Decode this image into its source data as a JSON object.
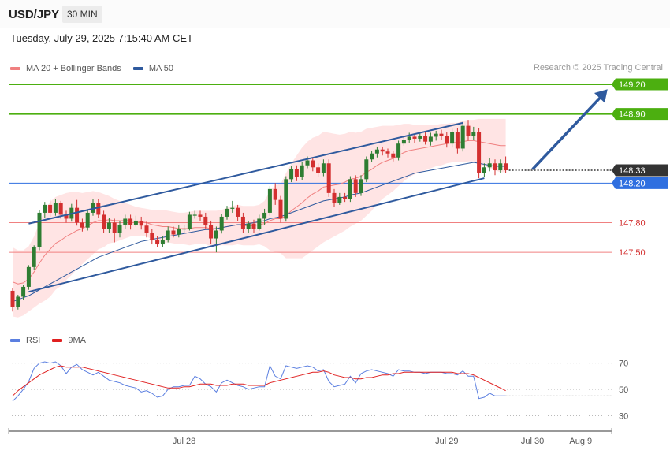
{
  "header": {
    "symbol": "USD/JPY",
    "timeframe": "30 MIN"
  },
  "datetime": "Tuesday, July 29, 2025 7:15:40 AM CET",
  "credit": "Research © 2025 Trading Central",
  "colors": {
    "up": "#2e7d32",
    "down": "#d32f2f",
    "ma20": "#f08080",
    "bands": "#ffd6d6",
    "ma50": "#2f5a9e",
    "resistance": "#4caf10",
    "pivot": "#2f6fe0",
    "support": "#f08080",
    "current": "#333333",
    "rsi": "#5b7fe0",
    "rsi_ma": "#e02020"
  },
  "legend": [
    {
      "name": "MA 20 + Bollinger Bands",
      "color": "#f08080"
    },
    {
      "name": "MA 50",
      "color": "#2f5a9e"
    }
  ],
  "rsi_legend": [
    {
      "name": "RSI",
      "color": "#5b7fe0"
    },
    {
      "name": "9MA",
      "color": "#e02020"
    }
  ],
  "chart_data": {
    "type": "candlestick",
    "x_labels": [
      {
        "label": "Jul 28",
        "bar": 32
      },
      {
        "label": "Jul 29",
        "bar": 81
      },
      {
        "label": "Jul 30",
        "bar": 97
      },
      {
        "label": "Aug 9",
        "bar": 106
      }
    ],
    "y_range": [
      146.85,
      149.35
    ],
    "levels": [
      {
        "label": "149.20",
        "value": 149.2,
        "kind": "resistance"
      },
      {
        "label": "148.90",
        "value": 148.9,
        "kind": "resistance"
      },
      {
        "label": "148.33",
        "value": 148.33,
        "kind": "current"
      },
      {
        "label": "148.20",
        "value": 148.2,
        "kind": "pivot"
      },
      {
        "label": "147.80",
        "value": 147.8,
        "kind": "support"
      },
      {
        "label": "147.50",
        "value": 147.5,
        "kind": "support"
      }
    ],
    "trendlines": [
      {
        "from": [
          3,
          147.79
        ],
        "to": [
          84,
          148.81
        ]
      },
      {
        "from": [
          3,
          147.1
        ],
        "to": [
          88,
          148.25
        ]
      }
    ],
    "arrow": {
      "from": [
        97,
        148.34
      ],
      "to": [
        111,
        149.15
      ]
    },
    "candles": [
      [
        147.11,
        146.95,
        147.14,
        146.9
      ],
      [
        146.95,
        147.05,
        147.07,
        146.92
      ],
      [
        147.05,
        147.15,
        147.17,
        147.02
      ],
      [
        147.15,
        147.35,
        147.37,
        147.12
      ],
      [
        147.35,
        147.55,
        147.57,
        147.32
      ],
      [
        147.55,
        147.9,
        147.93,
        147.52
      ],
      [
        147.9,
        147.98,
        148.01,
        147.85
      ],
      [
        147.98,
        147.9,
        148.03,
        147.86
      ],
      [
        147.9,
        148.0,
        148.04,
        147.87
      ],
      [
        148.0,
        147.88,
        148.02,
        147.84
      ],
      [
        147.88,
        147.84,
        147.92,
        147.8
      ],
      [
        147.84,
        147.95,
        147.99,
        147.81
      ],
      [
        147.95,
        147.8,
        148.03,
        147.77
      ],
      [
        147.8,
        147.75,
        147.84,
        147.71
      ],
      [
        147.75,
        147.9,
        147.93,
        147.72
      ],
      [
        147.9,
        148.0,
        148.04,
        147.87
      ],
      [
        148.0,
        147.88,
        148.04,
        147.85
      ],
      [
        147.88,
        147.74,
        147.92,
        147.7
      ],
      [
        147.74,
        147.8,
        147.85,
        147.7
      ],
      [
        147.8,
        147.7,
        147.84,
        147.6
      ],
      [
        147.7,
        147.78,
        147.82,
        147.65
      ],
      [
        147.78,
        147.84,
        147.88,
        147.74
      ],
      [
        147.84,
        147.78,
        147.88,
        147.73
      ],
      [
        147.78,
        147.82,
        147.87,
        147.76
      ],
      [
        147.82,
        147.77,
        147.86,
        147.73
      ],
      [
        147.77,
        147.7,
        147.81,
        147.65
      ],
      [
        147.7,
        147.62,
        147.74,
        147.58
      ],
      [
        147.62,
        147.58,
        147.66,
        147.55
      ],
      [
        147.58,
        147.62,
        147.66,
        147.55
      ],
      [
        147.62,
        147.72,
        147.76,
        147.6
      ],
      [
        147.72,
        147.68,
        147.76,
        147.65
      ],
      [
        147.68,
        147.74,
        147.78,
        147.65
      ],
      [
        147.74,
        147.74,
        147.78,
        147.7
      ],
      [
        147.74,
        147.88,
        147.91,
        147.72
      ],
      [
        147.88,
        147.88,
        147.92,
        147.84
      ],
      [
        147.88,
        147.86,
        147.92,
        147.82
      ],
      [
        147.86,
        147.78,
        147.9,
        147.74
      ],
      [
        147.78,
        147.64,
        147.82,
        147.58
      ],
      [
        147.64,
        147.72,
        147.76,
        147.5
      ],
      [
        147.72,
        147.86,
        147.89,
        147.69
      ],
      [
        147.86,
        147.94,
        147.97,
        147.83
      ],
      [
        147.94,
        147.95,
        148.02,
        147.9
      ],
      [
        147.95,
        147.86,
        147.98,
        147.82
      ],
      [
        147.86,
        147.74,
        147.9,
        147.7
      ],
      [
        147.74,
        147.79,
        147.82,
        147.7
      ],
      [
        147.79,
        147.74,
        147.83,
        147.7
      ],
      [
        147.74,
        147.84,
        147.88,
        147.72
      ],
      [
        147.84,
        147.9,
        147.94,
        147.78
      ],
      [
        147.9,
        148.14,
        148.17,
        147.87
      ],
      [
        148.14,
        148.03,
        148.2,
        147.98
      ],
      [
        148.03,
        147.84,
        148.07,
        147.8
      ],
      [
        147.84,
        148.24,
        148.27,
        147.81
      ],
      [
        148.24,
        148.34,
        148.37,
        148.21
      ],
      [
        148.34,
        148.26,
        148.38,
        148.22
      ],
      [
        148.26,
        148.38,
        148.41,
        148.23
      ],
      [
        148.38,
        148.43,
        148.47,
        148.35
      ],
      [
        148.43,
        148.36,
        148.46,
        148.32
      ],
      [
        148.36,
        148.3,
        148.4,
        148.26
      ],
      [
        148.3,
        148.4,
        148.44,
        148.27
      ],
      [
        148.4,
        148.1,
        148.44,
        148.06
      ],
      [
        148.1,
        148.0,
        148.14,
        147.96
      ],
      [
        148.0,
        148.06,
        148.1,
        147.98
      ],
      [
        148.06,
        148.04,
        148.1,
        148.01
      ],
      [
        148.04,
        148.24,
        148.27,
        148.01
      ],
      [
        148.24,
        148.1,
        148.28,
        148.06
      ],
      [
        148.1,
        148.24,
        148.28,
        148.07
      ],
      [
        148.24,
        148.44,
        148.47,
        148.21
      ],
      [
        148.44,
        148.5,
        148.53,
        148.41
      ],
      [
        148.5,
        148.54,
        148.57,
        148.46
      ],
      [
        148.54,
        148.52,
        148.57,
        148.48
      ],
      [
        148.52,
        148.5,
        148.55,
        148.46
      ],
      [
        148.5,
        148.46,
        148.53,
        148.42
      ],
      [
        148.46,
        148.6,
        148.63,
        148.43
      ],
      [
        148.6,
        148.64,
        148.68,
        148.58
      ],
      [
        148.64,
        148.67,
        148.71,
        148.61
      ],
      [
        148.67,
        148.65,
        148.7,
        148.61
      ],
      [
        148.65,
        148.68,
        148.72,
        148.62
      ],
      [
        148.68,
        148.62,
        148.72,
        148.59
      ],
      [
        148.62,
        148.67,
        148.71,
        148.58
      ],
      [
        148.67,
        148.7,
        148.73,
        148.63
      ],
      [
        148.7,
        148.68,
        148.74,
        148.64
      ],
      [
        148.68,
        148.6,
        148.72,
        148.56
      ],
      [
        148.6,
        148.72,
        148.75,
        148.56
      ],
      [
        148.72,
        148.55,
        148.76,
        148.5
      ],
      [
        148.55,
        148.78,
        148.82,
        148.52
      ],
      [
        148.78,
        148.68,
        148.84,
        148.63
      ],
      [
        148.68,
        148.72,
        148.77,
        148.64
      ],
      [
        148.72,
        148.3,
        148.76,
        148.25
      ],
      [
        148.3,
        148.36,
        148.4,
        148.26
      ],
      [
        148.36,
        148.4,
        148.45,
        148.32
      ],
      [
        148.4,
        148.33,
        148.44,
        148.28
      ],
      [
        148.33,
        148.4,
        148.44,
        148.3
      ],
      [
        148.4,
        148.33,
        148.47,
        148.3
      ]
    ],
    "ma20": [
      147.2,
      147.18,
      147.19,
      147.23,
      147.3,
      147.39,
      147.47,
      147.53,
      147.59,
      147.62,
      147.66,
      147.69,
      147.72,
      147.74,
      147.77,
      147.8,
      147.82,
      147.82,
      147.83,
      147.82,
      147.82,
      147.82,
      147.82,
      147.81,
      147.81,
      147.8,
      147.78,
      147.77,
      147.76,
      147.76,
      147.75,
      147.74,
      147.74,
      147.74,
      147.75,
      147.75,
      147.75,
      147.74,
      147.74,
      147.75,
      147.76,
      147.77,
      147.78,
      147.77,
      147.77,
      147.77,
      147.78,
      147.79,
      147.82,
      147.84,
      147.84,
      147.87,
      147.92,
      147.96,
      148.0,
      148.05,
      148.09,
      148.12,
      148.16,
      148.17,
      148.18,
      148.19,
      148.21,
      148.24,
      148.25,
      148.27,
      148.31,
      148.34,
      148.38,
      148.41,
      148.43,
      148.45,
      148.48,
      148.51,
      148.53,
      148.54,
      148.55,
      148.56,
      148.57,
      148.58,
      148.59,
      148.6,
      148.61,
      148.61,
      148.62,
      148.63,
      148.63,
      148.62,
      148.61,
      148.6,
      148.59,
      148.58,
      148.58
    ],
    "band_upper": [
      147.55,
      147.52,
      147.52,
      147.56,
      147.66,
      147.8,
      147.93,
      148.01,
      148.06,
      148.08,
      148.1,
      148.11,
      148.11,
      148.1,
      148.11,
      148.12,
      148.11,
      148.09,
      148.07,
      148.04,
      148.02,
      148.0,
      147.98,
      147.96,
      147.95,
      147.94,
      147.93,
      147.93,
      147.93,
      147.92,
      147.91,
      147.9,
      147.9,
      147.91,
      147.92,
      147.92,
      147.92,
      147.92,
      147.92,
      147.93,
      147.95,
      147.97,
      147.98,
      147.97,
      147.97,
      147.97,
      147.98,
      148.02,
      148.12,
      148.18,
      148.19,
      148.3,
      148.4,
      148.48,
      148.56,
      148.62,
      148.66,
      148.68,
      148.72,
      148.71,
      148.7,
      148.69,
      148.7,
      148.72,
      148.71,
      148.72,
      148.75,
      148.76,
      148.77,
      148.78,
      148.78,
      148.78,
      148.79,
      148.8,
      148.8,
      148.79,
      148.79,
      148.79,
      148.79,
      148.79,
      148.8,
      148.8,
      148.81,
      148.81,
      148.83,
      148.84,
      148.84,
      148.85,
      148.85,
      148.85,
      148.85,
      148.85,
      148.85
    ],
    "band_lower": [
      146.85,
      146.84,
      146.86,
      146.9,
      146.94,
      146.98,
      147.01,
      147.05,
      147.12,
      147.16,
      147.22,
      147.27,
      147.33,
      147.38,
      147.43,
      147.48,
      147.53,
      147.55,
      147.59,
      147.6,
      147.62,
      147.64,
      147.66,
      147.66,
      147.67,
      147.66,
      147.63,
      147.61,
      147.59,
      147.6,
      147.59,
      147.58,
      147.58,
      147.57,
      147.58,
      147.58,
      147.58,
      147.56,
      147.56,
      147.57,
      147.57,
      147.57,
      147.58,
      147.57,
      147.57,
      147.57,
      147.58,
      147.56,
      147.52,
      147.5,
      147.49,
      147.44,
      147.44,
      147.44,
      147.44,
      147.48,
      147.52,
      147.56,
      147.6,
      147.63,
      147.66,
      147.69,
      147.72,
      147.76,
      147.79,
      147.82,
      147.87,
      147.92,
      147.99,
      148.04,
      148.08,
      148.12,
      148.17,
      148.22,
      148.26,
      148.29,
      148.31,
      148.33,
      148.35,
      148.37,
      148.38,
      148.4,
      148.41,
      148.41,
      148.41,
      148.42,
      148.42,
      148.39,
      148.37,
      148.35,
      148.33,
      148.31,
      148.31
    ],
    "ma50": [
      147.0,
      147.02,
      147.04,
      147.06,
      147.09,
      147.12,
      147.15,
      147.18,
      147.21,
      147.24,
      147.27,
      147.3,
      147.33,
      147.36,
      147.39,
      147.42,
      147.45,
      147.47,
      147.49,
      147.51,
      147.53,
      147.55,
      147.57,
      147.59,
      147.61,
      147.62,
      147.63,
      147.64,
      147.65,
      147.66,
      147.67,
      147.68,
      147.69,
      147.7,
      147.71,
      147.72,
      147.73,
      147.73,
      147.74,
      147.75,
      147.76,
      147.77,
      147.78,
      147.78,
      147.79,
      147.8,
      147.81,
      147.82,
      147.84,
      147.85,
      147.86,
      147.88,
      147.9,
      147.92,
      147.94,
      147.96,
      147.98,
      148.0,
      148.02,
      148.03,
      148.04,
      148.05,
      148.06,
      148.08,
      148.09,
      148.1,
      148.12,
      148.14,
      148.16,
      148.18,
      148.2,
      148.22,
      148.24,
      148.26,
      148.28,
      148.3,
      148.31,
      148.32,
      148.33,
      148.34,
      148.35,
      148.36,
      148.37,
      148.38,
      148.39,
      148.4,
      148.41,
      148.4,
      148.39,
      148.38,
      148.37,
      148.37,
      148.37
    ],
    "rsi_levels": [
      70,
      50,
      30
    ],
    "rsi": [
      41,
      45,
      50,
      56,
      66,
      70,
      71,
      70,
      71,
      68,
      62,
      67,
      69,
      65,
      63,
      61,
      63,
      60,
      57,
      56,
      55,
      53,
      52,
      51,
      48,
      49,
      47,
      44,
      45,
      50,
      52,
      52,
      53,
      53,
      60,
      58,
      54,
      52,
      48,
      55,
      57,
      55,
      53,
      52,
      50,
      51,
      52,
      52,
      68,
      60,
      58,
      68,
      67,
      66,
      67,
      68,
      67,
      64,
      65,
      56,
      52,
      53,
      54,
      60,
      55,
      62,
      64,
      65,
      64,
      63,
      62,
      60,
      65,
      64,
      64,
      63,
      63,
      62,
      63,
      63,
      63,
      62,
      62,
      61,
      64,
      60,
      60,
      43,
      44,
      47,
      45,
      45,
      45
    ],
    "rsi_ma": [
      45,
      49,
      52,
      55,
      58,
      61,
      63,
      65,
      67,
      68,
      67,
      67,
      67,
      67,
      66,
      65,
      64,
      63,
      62,
      61,
      60,
      59,
      58,
      57,
      56,
      55,
      54,
      53,
      52,
      51,
      51,
      51,
      52,
      52,
      53,
      54,
      54,
      54,
      53,
      53,
      53,
      54,
      54,
      54,
      53,
      53,
      53,
      53,
      55,
      56,
      57,
      58,
      59,
      60,
      61,
      62,
      63,
      63,
      64,
      63,
      61,
      60,
      59,
      59,
      58,
      58,
      59,
      59,
      60,
      61,
      61,
      62,
      62,
      63,
      63,
      63,
      63,
      63,
      63,
      63,
      63,
      63,
      63,
      62,
      62,
      62,
      61,
      59,
      57,
      55,
      53,
      51,
      49
    ]
  }
}
